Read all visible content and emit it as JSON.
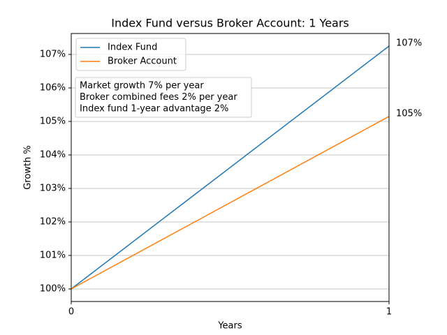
{
  "chart_data": {
    "type": "line",
    "title": "Index Fund versus Broker Account: 1 Years",
    "x_label": "Years",
    "y_label": "Growth %",
    "x": [
      0,
      1
    ],
    "series": [
      {
        "name": "Index Fund",
        "color": "#1f77b4",
        "values": [
          100,
          107.25
        ],
        "value_labels": [
          null,
          "107%"
        ]
      },
      {
        "name": "Broker Account",
        "color": "#ff7f0e",
        "values": [
          100,
          105.15
        ],
        "value_labels": [
          null,
          "105%"
        ]
      }
    ],
    "xlim": [
      0,
      1
    ],
    "xticks": [
      0,
      1
    ],
    "ylim": [
      99.625,
      107.625
    ],
    "yticks": [
      {
        "value": 100,
        "label": "100%"
      },
      {
        "value": 101,
        "label": "101%"
      },
      {
        "value": 102,
        "label": "102%"
      },
      {
        "value": 103,
        "label": "103%"
      },
      {
        "value": 104,
        "label": "104%"
      },
      {
        "value": 105,
        "label": "105%"
      },
      {
        "value": 106,
        "label": "106%"
      },
      {
        "value": 107,
        "label": "107%"
      }
    ],
    "grid": "y",
    "legend": "upper left",
    "annotation": [
      "Market growth 7% per year",
      "Broker combined fees 2% per year",
      "Index fund 1-year advantage 2%"
    ]
  }
}
